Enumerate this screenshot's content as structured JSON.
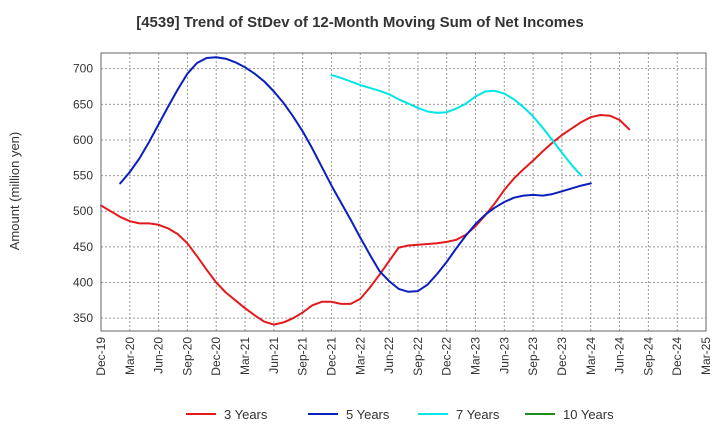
{
  "chart_data": {
    "type": "line",
    "title": "[4539]  Trend of StDev of 12-Month Moving Sum of Net Incomes",
    "ylabel": "Amount (million yen)",
    "xlabel": "",
    "ylim": [
      332,
      722
    ],
    "yticks": [
      350,
      400,
      450,
      500,
      550,
      600,
      650,
      700
    ],
    "x_ticks": [
      "Dec-19",
      "Mar-20",
      "Jun-20",
      "Sep-20",
      "Dec-20",
      "Mar-21",
      "Jun-21",
      "Sep-21",
      "Dec-21",
      "Mar-22",
      "Jun-22",
      "Sep-22",
      "Dec-22",
      "Mar-23",
      "Jun-23",
      "Sep-23",
      "Dec-23",
      "Mar-24",
      "Jun-24",
      "Sep-24",
      "Dec-24",
      "Mar-25"
    ],
    "grid": true,
    "legend_position": "bottom",
    "series": [
      {
        "name": "3 Years",
        "color": "#e31a1c",
        "start_index": 0,
        "values": [
          508,
          500,
          492,
          486,
          483,
          483,
          481,
          476,
          468,
          455,
          437,
          418,
          400,
          386,
          375,
          364,
          354,
          345,
          341,
          344,
          350,
          358,
          368,
          373,
          373,
          370,
          370,
          377,
          393,
          411,
          430,
          449,
          452,
          453,
          454,
          455,
          457,
          460,
          467,
          479,
          494,
          511,
          530,
          546,
          559,
          571,
          584,
          596,
          607,
          616,
          625,
          632,
          635,
          634,
          628,
          615
        ]
      },
      {
        "name": "5 Years",
        "color": "#0a1fbf",
        "start_index": 2,
        "values": [
          539,
          555,
          574,
          597,
          622,
          647,
          671,
          693,
          708,
          715,
          716,
          714,
          709,
          702,
          693,
          682,
          668,
          652,
          633,
          612,
          588,
          562,
          536,
          512,
          488,
          463,
          439,
          416,
          402,
          391,
          387,
          388,
          397,
          412,
          429,
          448,
          466,
          482,
          495,
          505,
          513,
          519,
          522,
          523,
          522,
          524,
          528,
          532,
          536,
          539
        ]
      },
      {
        "name": "7 Years",
        "color": "#00e6e6",
        "start_index": 24,
        "values": [
          691,
          687,
          682,
          677,
          673,
          669,
          664,
          657,
          651,
          645,
          640,
          638,
          639,
          644,
          651,
          661,
          668,
          669,
          665,
          657,
          646,
          633,
          617,
          600,
          582,
          565,
          550
        ]
      },
      {
        "name": "10 Years",
        "color": "#1e8f1e",
        "start_index": 0,
        "values": []
      }
    ]
  }
}
